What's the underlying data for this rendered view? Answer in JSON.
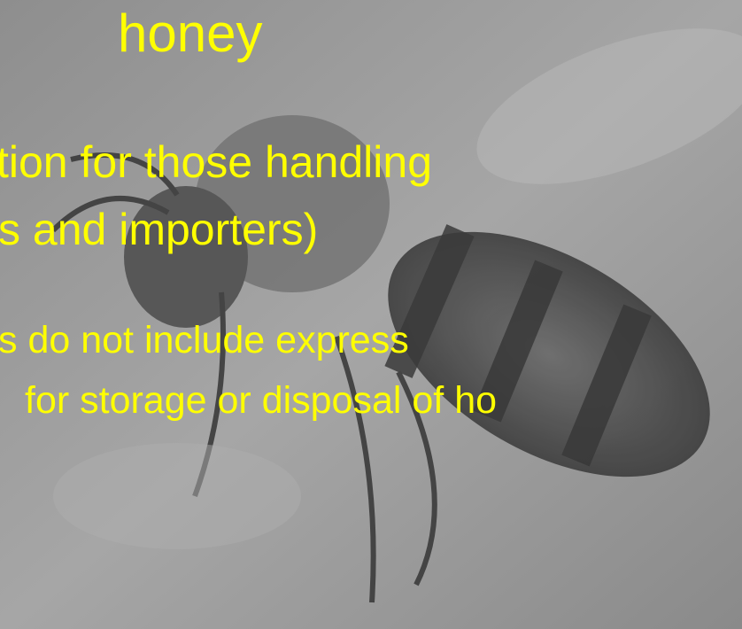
{
  "slide": {
    "title": "honey",
    "bullets": [
      "tion for those handling",
      "s and importers)"
    ],
    "sub_bullets": [
      "s do not include express",
      "for storage or disposal of ho"
    ]
  }
}
